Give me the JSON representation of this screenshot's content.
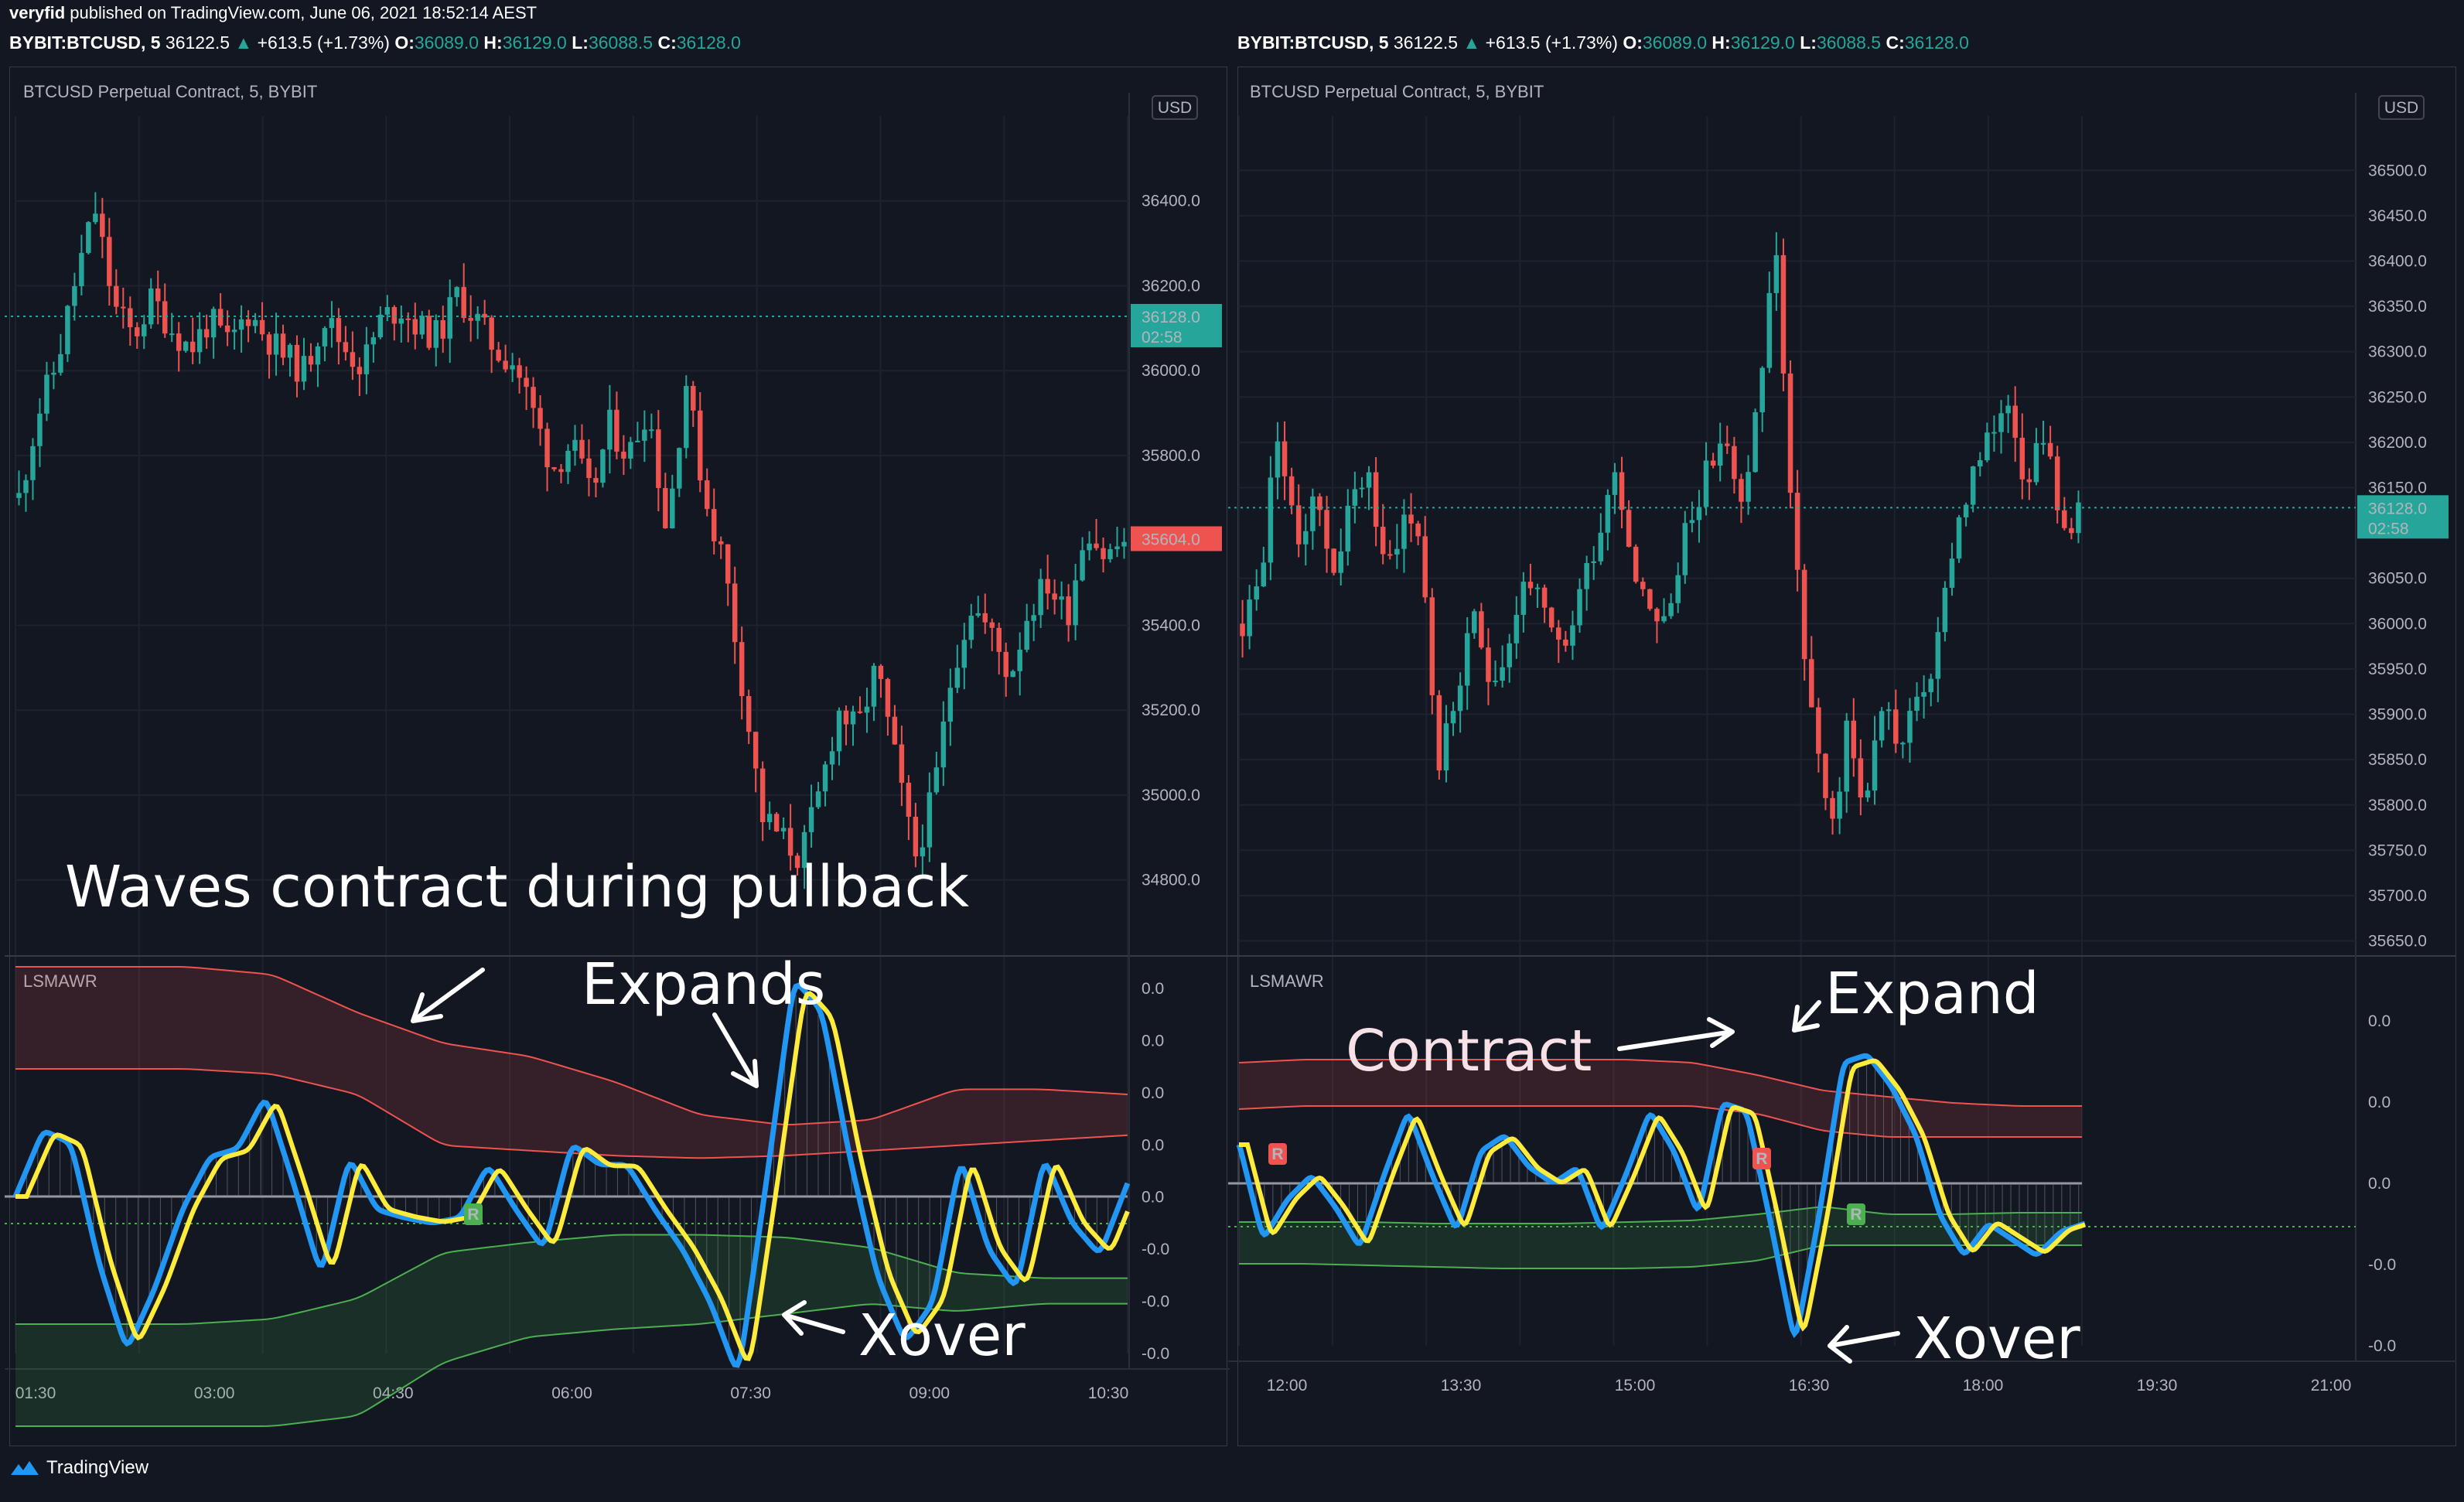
{
  "header": {
    "author": "veryfid",
    "published": "published on TradingView.com, June 06, 2021 18:52:14 AEST"
  },
  "footer": {
    "brand": "TradingView"
  },
  "colors": {
    "background": "#131722",
    "up": "#26a69a",
    "down": "#ef5350",
    "osc_fast": "#2196f3",
    "osc_slow": "#ffeb3b",
    "upper_band": "#ef5350",
    "lower_band": "#4caf50"
  },
  "chart_data": [
    {
      "type": "candlestick",
      "symbol_info": {
        "symbol": "BYBIT:BTCUSD, 5",
        "last": "36122.5",
        "change": "+613.5 (+1.73%)",
        "O": "36089.0",
        "H": "36129.0",
        "L": "36088.5",
        "C": "36128.0"
      },
      "title": "BTCUSD Perpetual Contract, 5, BYBIT",
      "currency": "USD",
      "y_ticks": [
        "36400.0",
        "36200.0",
        "36000.0",
        "35800.0",
        "35400.0",
        "35200.0",
        "35000.0",
        "34800.0"
      ],
      "ylim": [
        34650,
        36600
      ],
      "price_labels": [
        {
          "value": "36128.0",
          "sub": "02:58",
          "color": "#26a69a"
        },
        {
          "value": "35604.0",
          "sub": "",
          "color": "#ef5350"
        }
      ],
      "x_ticks": [
        "01:30",
        "03:00",
        "04:30",
        "06:00",
        "07:30",
        "09:00",
        "10:30"
      ],
      "close_path": [
        35700,
        35900,
        36020,
        36220,
        36380,
        36150,
        36080,
        36170,
        36100,
        36050,
        36120,
        36060,
        36140,
        36080,
        36030,
        36000,
        36130,
        36060,
        36010,
        36120,
        36150,
        36100,
        36080,
        36180,
        36120,
        36050,
        36020,
        35900,
        35770,
        35830,
        35700,
        35870,
        35800,
        35920,
        35620,
        35980,
        35700,
        35550,
        35250,
        34950,
        34900,
        34850,
        35000,
        35200,
        35150,
        35300,
        35080,
        34850,
        35000,
        35300,
        35450,
        35380,
        35280,
        35440,
        35500,
        35420,
        35640,
        35560,
        35600
      ],
      "indicator": {
        "name": "LSMAWR",
        "y_ticks": [
          "0.0",
          "0.0",
          "0.0",
          "0.0",
          "0.0",
          "-0.0",
          "-0.0",
          "-0.0"
        ],
        "upper_band_top": [
          0.9,
          0.9,
          0.9,
          0.87,
          0.72,
          0.6,
          0.55,
          0.45,
          0.32,
          0.28,
          0.3,
          0.42,
          0.42,
          0.4
        ],
        "upper_band_bottom": [
          0.5,
          0.5,
          0.5,
          0.48,
          0.4,
          0.2,
          0.18,
          0.16,
          0.15,
          0.16,
          0.18,
          0.2,
          0.22,
          0.24
        ],
        "lower_band_top": [
          -0.5,
          -0.5,
          -0.5,
          -0.48,
          -0.4,
          -0.22,
          -0.18,
          -0.15,
          -0.15,
          -0.16,
          -0.2,
          -0.3,
          -0.32,
          -0.32
        ],
        "lower_band_bottom": [
          -0.9,
          -0.9,
          -0.9,
          -0.9,
          -0.86,
          -0.65,
          -0.55,
          -0.52,
          -0.5,
          -0.46,
          -0.42,
          -0.45,
          -0.42,
          -0.42
        ],
        "oscillator": [
          0.0,
          0.25,
          0.2,
          -0.25,
          -0.58,
          -0.35,
          -0.05,
          0.15,
          0.18,
          0.38,
          0.05,
          -0.3,
          0.15,
          -0.05,
          -0.08,
          -0.1,
          -0.08,
          0.12,
          -0.05,
          -0.2,
          0.2,
          0.12,
          0.12,
          -0.05,
          -0.2,
          -0.4,
          -0.68,
          0.05,
          0.82,
          0.7,
          0.15,
          -0.3,
          -0.55,
          -0.4,
          0.15,
          -0.2,
          -0.35,
          0.15,
          -0.1,
          -0.22,
          0.05
        ],
        "signals": [
          {
            "label": "R",
            "color": "#4caf50"
          }
        ]
      },
      "annotations": [
        "Waves contract during pullback",
        "Expands",
        "Xover"
      ]
    },
    {
      "type": "candlestick",
      "symbol_info": {
        "symbol": "BYBIT:BTCUSD, 5",
        "last": "36122.5",
        "change": "+613.5 (+1.73%)",
        "O": "36089.0",
        "H": "36129.0",
        "L": "36088.5",
        "C": "36128.0"
      },
      "title": "BTCUSD Perpetual Contract, 5, BYBIT",
      "currency": "USD",
      "y_ticks": [
        "36500.0",
        "36450.0",
        "36400.0",
        "36350.0",
        "36300.0",
        "36250.0",
        "36200.0",
        "36150.0",
        "36050.0",
        "36000.0",
        "35950.0",
        "35900.0",
        "35850.0",
        "35800.0",
        "35750.0",
        "35700.0",
        "35650.0"
      ],
      "ylim": [
        35630,
        36560
      ],
      "price_labels": [
        {
          "value": "36128.0",
          "sub": "02:58",
          "color": "#26a69a"
        }
      ],
      "x_ticks": [
        "12:00",
        "13:30",
        "15:00",
        "16:30",
        "18:00",
        "19:30",
        "21:00"
      ],
      "close_path": [
        36000,
        36050,
        36220,
        36080,
        36150,
        36060,
        36120,
        36180,
        36050,
        36120,
        36100,
        35840,
        35920,
        36000,
        35940,
        35980,
        36060,
        36000,
        35960,
        36040,
        36100,
        36180,
        36060,
        36020,
        36000,
        36120,
        36160,
        36210,
        36120,
        36250,
        36420,
        36080,
        35900,
        35760,
        35880,
        35800,
        35920,
        35860,
        35920,
        35960,
        36100,
        36160,
        36200,
        36260,
        36160,
        36220,
        36100,
        36130
      ],
      "indicator": {
        "name": "LSMAWR",
        "y_ticks": [
          "0.0",
          "0.0",
          "0.0",
          "-0.0",
          "-0.0"
        ],
        "upper_band_top": [
          0.78,
          0.8,
          0.8,
          0.8,
          0.8,
          0.8,
          0.8,
          0.78,
          0.7,
          0.6,
          0.56,
          0.52,
          0.5,
          0.5
        ],
        "upper_band_bottom": [
          0.48,
          0.5,
          0.5,
          0.5,
          0.5,
          0.5,
          0.5,
          0.5,
          0.45,
          0.34,
          0.3,
          0.3,
          0.3,
          0.3
        ],
        "lower_band_top": [
          -0.25,
          -0.25,
          -0.25,
          -0.26,
          -0.26,
          -0.26,
          -0.25,
          -0.24,
          -0.2,
          -0.15,
          -0.2,
          -0.2,
          -0.19,
          -0.19
        ],
        "lower_band_bottom": [
          -0.52,
          -0.52,
          -0.53,
          -0.54,
          -0.55,
          -0.55,
          -0.55,
          -0.54,
          -0.5,
          -0.4,
          -0.4,
          -0.4,
          -0.4,
          -0.4
        ],
        "oscillator": [
          0.25,
          -0.35,
          -0.1,
          0.05,
          -0.15,
          -0.4,
          0.05,
          0.45,
          0.05,
          -0.3,
          0.2,
          0.3,
          0.1,
          0.0,
          0.1,
          -0.3,
          0.05,
          0.45,
          0.2,
          -0.2,
          0.5,
          0.45,
          -0.25,
          -1.0,
          -0.2,
          0.75,
          0.8,
          0.6,
          0.3,
          -0.2,
          -0.45,
          -0.25,
          -0.35,
          -0.45,
          -0.3,
          -0.25
        ],
        "signals": [
          {
            "label": "R",
            "color": "#ef5350"
          },
          {
            "label": "R",
            "color": "#ef5350"
          },
          {
            "label": "R",
            "color": "#4caf50"
          }
        ]
      },
      "annotations": [
        "Contract",
        "Expand",
        "Xover"
      ]
    }
  ]
}
